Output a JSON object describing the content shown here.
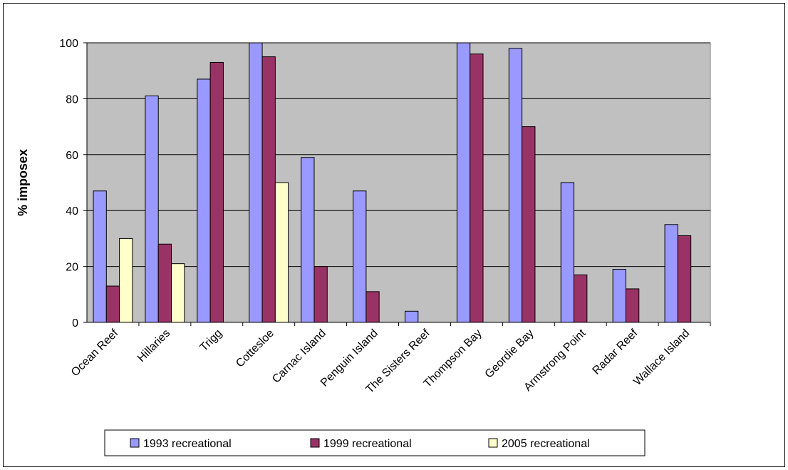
{
  "chart_data": {
    "type": "bar",
    "ylabel": "% imposex",
    "ylim": [
      0,
      100
    ],
    "yticks": [
      0,
      20,
      40,
      60,
      80,
      100
    ],
    "grid": true,
    "legend_position": "bottom",
    "plot_background": "#c0c0c0",
    "categories": [
      "Ocean Reef",
      "Hillaries",
      "Trigg",
      "Cottesloe",
      "Carnac Island",
      "Penguin Island",
      "The Sisters Reef",
      "Thompson Bay",
      "Geordie Bay",
      "Armstrong Point",
      "Radar Reef",
      "Wallace Island"
    ],
    "series": [
      {
        "name": "1993 recreational",
        "color": "#9999ff",
        "values": [
          47,
          81,
          87,
          100,
          59,
          47,
          4,
          100,
          98,
          50,
          19,
          35
        ]
      },
      {
        "name": "1999 recreational",
        "color": "#993366",
        "values": [
          13,
          28,
          93,
          95,
          20,
          11,
          null,
          96,
          70,
          17,
          12,
          31
        ]
      },
      {
        "name": "2005 recreational",
        "color": "#ffffcc",
        "values": [
          30,
          21,
          null,
          50,
          null,
          null,
          null,
          null,
          null,
          null,
          null,
          null
        ]
      }
    ]
  }
}
